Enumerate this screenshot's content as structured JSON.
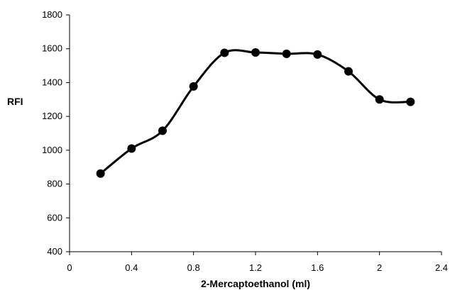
{
  "chart_data": {
    "type": "line",
    "title": "",
    "xlabel": "2-Mercaptoethanol (ml)",
    "ylabel": "RFI",
    "xlim": [
      0,
      2.4
    ],
    "ylim": [
      400,
      1800
    ],
    "x_ticks": [
      "0",
      "0.4",
      "0.8",
      "1.2",
      "1.6",
      "2",
      "2.4"
    ],
    "y_ticks": [
      "400",
      "600",
      "800",
      "1000",
      "1200",
      "1400",
      "1600",
      "1800"
    ],
    "grid": false,
    "legend": "none",
    "smooth": true,
    "series": [
      {
        "x": [
          0.2,
          0.4,
          0.6,
          0.8,
          1.0,
          1.2,
          1.4,
          1.6,
          1.8,
          2.0,
          2.2
        ],
        "y": [
          862,
          1010,
          1115,
          1377,
          1576,
          1578,
          1570,
          1566,
          1466,
          1300,
          1286
        ],
        "color": "#000000"
      }
    ]
  }
}
